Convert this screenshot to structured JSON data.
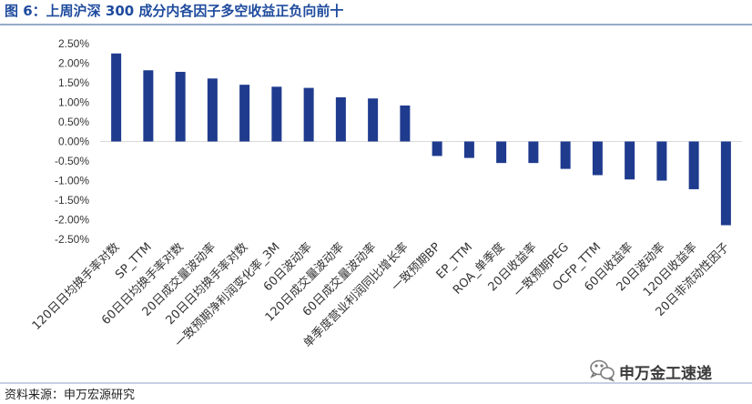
{
  "chart_data": {
    "type": "bar",
    "title": "图 6：上周沪深 300 成分内各因子多空收益正负向前十",
    "xlabel": "",
    "ylabel": "",
    "categories": [
      "120日日均换手率对数",
      "SP_TTM",
      "60日日均换手率对数",
      "20日成交量波动率",
      "20日日均换手率对数",
      "一致预期净利润变化率_3M",
      "60日波动率",
      "120日成交量波动率",
      "60日成交量波动率",
      "单季度营业利润同比增长率",
      "一致预期BP",
      "EP_TTM",
      "ROA_单季度",
      "20日收益率",
      "一致预期PEG",
      "OCFP_TTM",
      "60日收益率",
      "20日波动率",
      "120日收益率",
      "20日非流动性因子"
    ],
    "values": [
      2.25,
      1.82,
      1.78,
      1.61,
      1.45,
      1.4,
      1.37,
      1.13,
      1.1,
      0.92,
      -0.37,
      -0.42,
      -0.55,
      -0.55,
      -0.7,
      -0.86,
      -0.97,
      -1.0,
      -1.22,
      -2.14
    ],
    "ylim": [
      -2.5,
      2.5
    ],
    "yticks": [
      2.5,
      2.0,
      1.5,
      1.0,
      0.5,
      0.0,
      -0.5,
      -1.0,
      -1.5,
      -2.0,
      -2.5
    ],
    "ytick_labels": [
      "2.50%",
      "2.00%",
      "1.50%",
      "1.00%",
      "0.50%",
      "0.00%",
      "-0.50%",
      "-1.00%",
      "-1.50%",
      "-2.00%",
      "-2.50%"
    ],
    "grid": false,
    "legend": "none",
    "bar_color": "#1f3b8e"
  },
  "source": "资料来源：申万宏源研究",
  "watermark": {
    "icon": "wechat-icon",
    "text": "申万金工速递"
  },
  "colors": {
    "title": "#1f4b9e",
    "title_rule": "#2f5597",
    "baseline": "#d9d9d9",
    "footer_rule": "#8ea2c8"
  }
}
